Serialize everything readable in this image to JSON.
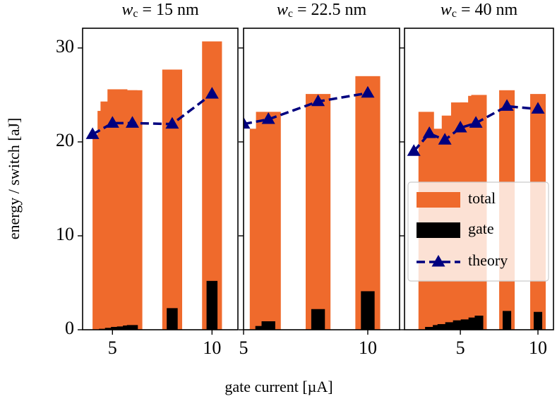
{
  "chart_data": {
    "type": "bar",
    "ylabel": "energy / switch [aJ]",
    "xlabel": "gate current [µA]",
    "ylim": [
      0,
      32.1
    ],
    "yticks": [
      0,
      10,
      20,
      30
    ],
    "legend": "center right",
    "panels": [
      {
        "title_symbol": "w",
        "title_subscript": "c",
        "title_value": "= 15 nm",
        "xlim": [
          3.5,
          11.3
        ],
        "xticks": [
          5,
          10
        ],
        "series": [
          {
            "name": "total",
            "color": "#ef6a2c",
            "x": [
              4.5,
              4.75,
              4.9,
              5.25,
              5.75,
              6.0,
              8,
              10
            ],
            "values": [
              20.8,
              23.3,
              24.3,
              25.6,
              25.5,
              25.5,
              27.7,
              30.7
            ]
          },
          {
            "name": "gate",
            "color": "#000000",
            "x": [
              4.6,
              4.9,
              5.2,
              5.5,
              5.8,
              6.0,
              8,
              10
            ],
            "values": [
              0.1,
              0.2,
              0.3,
              0.35,
              0.45,
              0.5,
              2.3,
              5.2
            ]
          },
          {
            "name": "theory",
            "color": "#00007f",
            "x": [
              4,
              5,
              6,
              8,
              10
            ],
            "values": [
              20.8,
              22.0,
              22.0,
              21.9,
              25.1
            ]
          }
        ]
      },
      {
        "title_symbol": "w",
        "title_subscript": "c",
        "title_value": "= 22.5 nm",
        "xlim": [
          5,
          11.28
        ],
        "xticks": [
          5,
          10
        ],
        "series": [
          {
            "name": "total",
            "color": "#ef6a2c",
            "x": [
              5.75,
              6.0,
              8,
              10
            ],
            "values": [
              21.4,
              23.2,
              25.1,
              27.0
            ]
          },
          {
            "name": "gate",
            "color": "#000000",
            "x": [
              5.75,
              6.0,
              8,
              10
            ],
            "values": [
              0.4,
              0.9,
              2.2,
              4.1
            ]
          },
          {
            "name": "theory",
            "color": "#00007f",
            "x": [
              5,
              6,
              8,
              10
            ],
            "values": [
              21.9,
              22.4,
              24.3,
              25.2
            ]
          }
        ]
      },
      {
        "title_symbol": "w",
        "title_subscript": "c",
        "title_value": "= 40 nm",
        "xlim": [
          1.4,
          11.0
        ],
        "xticks": [
          5,
          10
        ],
        "series": [
          {
            "name": "total",
            "color": "#ef6a2c",
            "x": [
              2.8,
              3.5,
              3.7,
              4.3,
              4.9,
              5.5,
              6.0,
              6.2,
              8,
              10
            ],
            "values": [
              23.2,
              21.0,
              21.4,
              22.8,
              24.2,
              24.2,
              24.9,
              25.0,
              25.5,
              25.1
            ]
          },
          {
            "name": "gate",
            "color": "#000000",
            "x": [
              3.0,
              3.5,
              3.8,
              4.3,
              4.8,
              5.3,
              5.8,
              6.2,
              8,
              10
            ],
            "values": [
              0.3,
              0.5,
              0.6,
              0.8,
              1.0,
              1.1,
              1.3,
              1.5,
              2.0,
              1.9
            ]
          },
          {
            "name": "theory",
            "color": "#00007f",
            "x": [
              2,
              3,
              4,
              5,
              6,
              8,
              10
            ],
            "values": [
              19.0,
              20.9,
              20.2,
              21.5,
              22.0,
              23.8,
              23.5
            ]
          }
        ]
      }
    ]
  }
}
